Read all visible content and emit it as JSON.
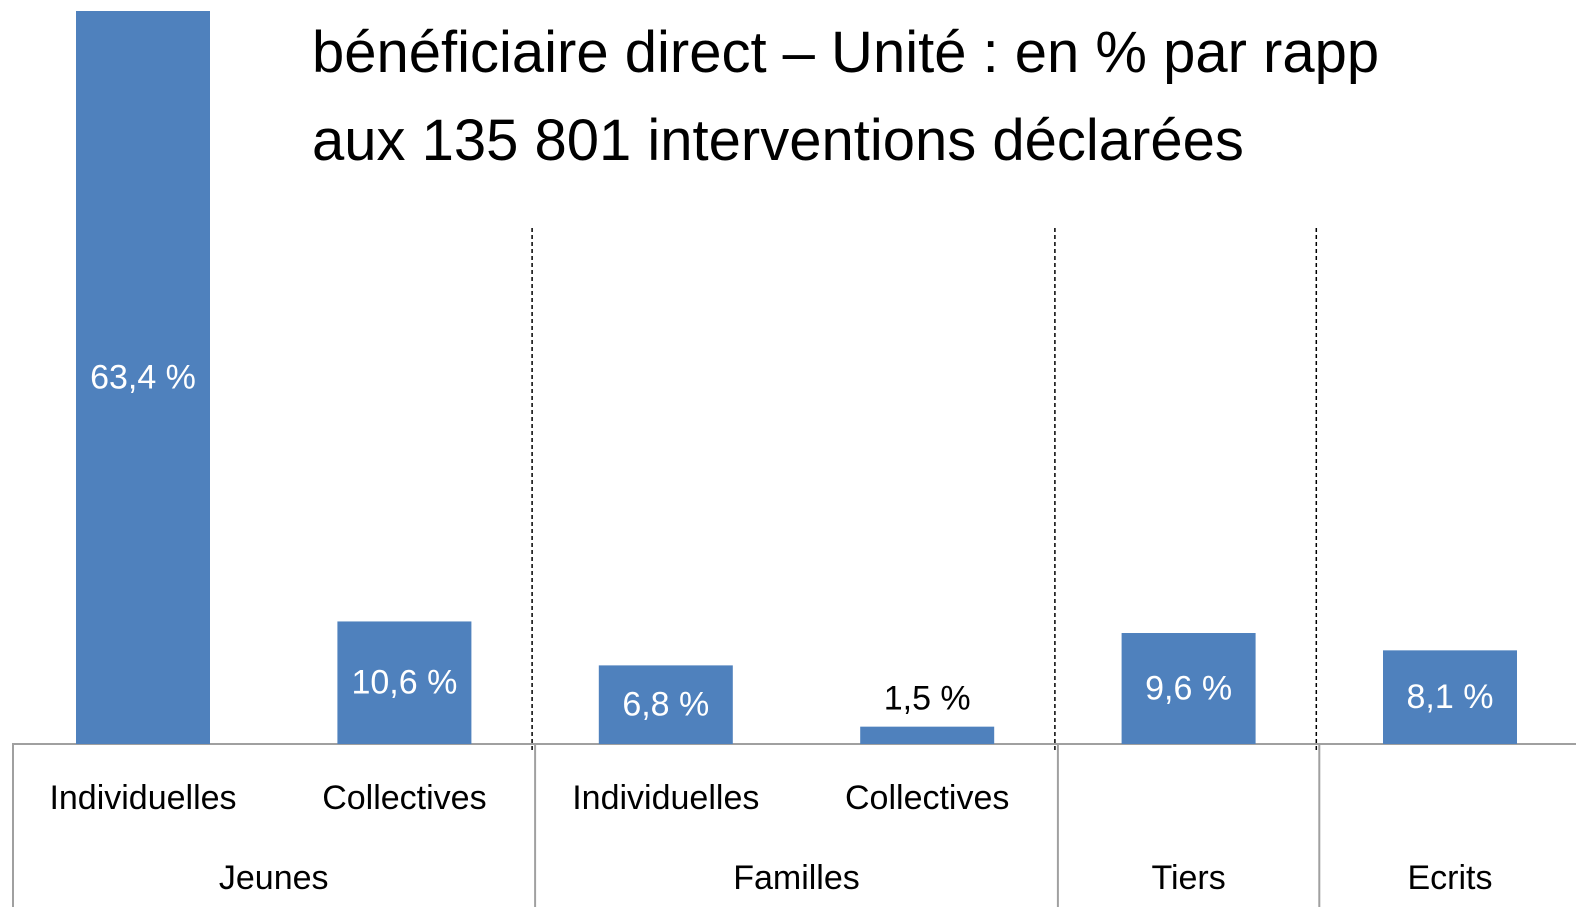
{
  "chart_data": {
    "type": "bar",
    "title": [
      "bénéficiaire direct – Unité :  en % par rapp",
      "aux 135 801 interventions déclarées"
    ],
    "categories": [
      "Individuelles",
      "Collectives",
      "Individuelles",
      "Collectives",
      null,
      null
    ],
    "groups": [
      "Jeunes",
      "Jeunes",
      "Familles",
      "Familles",
      "Tiers",
      "Ecrits"
    ],
    "values": [
      63.4,
      10.6,
      6.8,
      1.5,
      9.6,
      8.1
    ],
    "value_labels": [
      "63,4 %",
      "10,6 %",
      "6,8 %",
      "1,5 %",
      "9,6 %",
      "8,1 %"
    ],
    "color": "#4f81bd"
  }
}
